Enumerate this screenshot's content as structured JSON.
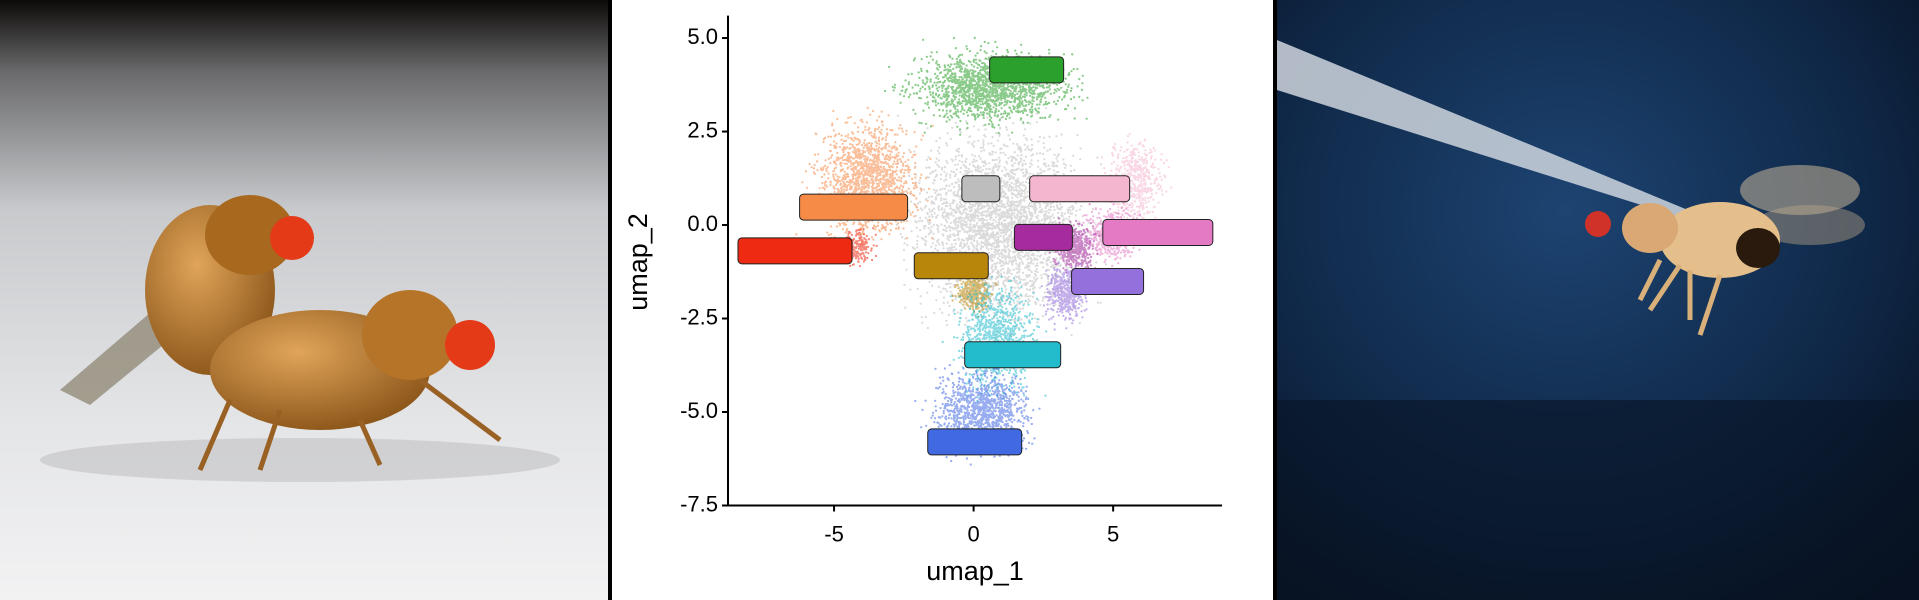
{
  "chart_data": {
    "type": "scatter",
    "x_label": "umap_1",
    "y_label": "umap_2",
    "xlim": [
      -8.8,
      8.9
    ],
    "ylim": [
      -7.5,
      5.6
    ],
    "xticks": [
      -5,
      0,
      5
    ],
    "yticks": [
      {
        "value": 5,
        "label": "5.0"
      },
      {
        "value": 2.5,
        "label": "2.5"
      },
      {
        "value": 0,
        "label": "0.0"
      },
      {
        "value": -2.5,
        "label": "-2.5"
      },
      {
        "value": -5,
        "label": "-5.0"
      },
      {
        "value": -7.5,
        "label": "-7.5"
      }
    ],
    "grid": false,
    "series": [
      {
        "color": "#2ca02c",
        "x": [
          1.9
        ],
        "y": [
          4.15
        ]
      },
      {
        "color": "#bdbdbd",
        "x": [
          0.26
        ],
        "y": [
          0.97
        ]
      },
      {
        "color": "#f4b6cf",
        "x": [
          3.8
        ],
        "y": [
          0.97
        ]
      },
      {
        "color": "#f58b47",
        "x": [
          -4.3
        ],
        "y": [
          0.48
        ]
      },
      {
        "color": "#e47ac4",
        "x": [
          6.6
        ],
        "y": [
          -0.2
        ]
      },
      {
        "color": "#a52b9e",
        "x": [
          2.5
        ],
        "y": [
          -0.33
        ]
      },
      {
        "color": "#ee2a12",
        "x": [
          -6.4
        ],
        "y": [
          -0.69
        ]
      },
      {
        "color": "#b8860b",
        "x": [
          -0.8
        ],
        "y": [
          -1.09
        ]
      },
      {
        "color": "#9370db",
        "x": [
          4.8
        ],
        "y": [
          -1.51
        ]
      },
      {
        "color": "#22bccc",
        "x": [
          1.4
        ],
        "y": [
          -3.47
        ]
      },
      {
        "color": "#4169e1",
        "x": [
          0.04
        ],
        "y": [
          -5.8
        ]
      }
    ]
  }
}
